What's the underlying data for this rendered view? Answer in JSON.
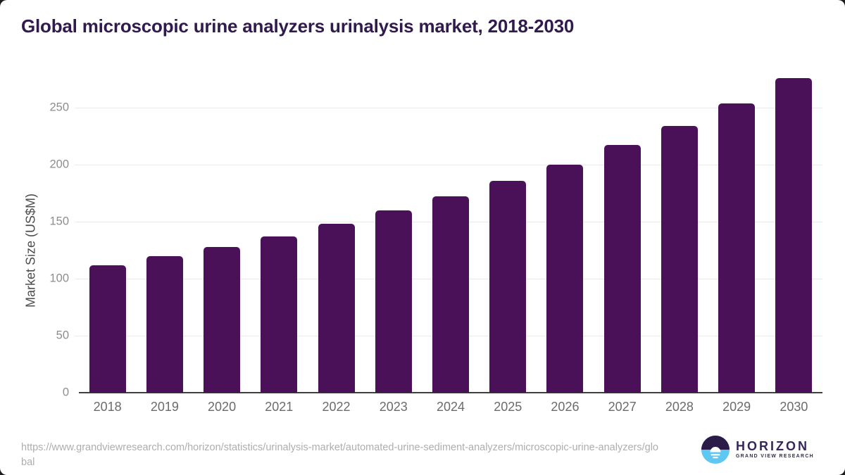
{
  "title": "Global microscopic urine analyzers urinalysis market, 2018-2030",
  "chart_data": {
    "type": "bar",
    "title": "Global microscopic urine analyzers urinalysis market, 2018-2030",
    "categories": [
      "2018",
      "2019",
      "2020",
      "2021",
      "2022",
      "2023",
      "2024",
      "2025",
      "2026",
      "2027",
      "2028",
      "2029",
      "2030"
    ],
    "values": [
      112,
      120,
      128,
      137,
      148,
      160,
      172,
      186,
      200,
      217,
      234,
      254,
      276
    ],
    "xlabel": "",
    "ylabel": "Market Size (US$M)",
    "ylim": [
      0,
      280
    ],
    "yticks": [
      0,
      50,
      100,
      150,
      200,
      250
    ],
    "grid": true,
    "legend_position": "none",
    "bar_color": "#4a1159"
  },
  "footer": {
    "source_url": "https://www.grandviewresearch.com/horizon/statistics/urinalysis-market/automated-urine-sediment-analyzers/microscopic-urine-analyzers/global",
    "logo": {
      "name": "HORIZON",
      "subtitle": "GRAND VIEW RESEARCH",
      "icon": "horizon-sunrise-circle-icon"
    }
  },
  "colors": {
    "bar": "#4a1159",
    "title": "#311a4d",
    "axis_line": "#404040",
    "gridline": "#e9e9e9",
    "tick_label": "#8d8d8d",
    "category_label": "#6b6b6b",
    "source_text": "#aeaeae",
    "logo_purple": "#372758",
    "logo_dark_half": "#2b1b49",
    "logo_blue_half": "#5ec8f2"
  }
}
